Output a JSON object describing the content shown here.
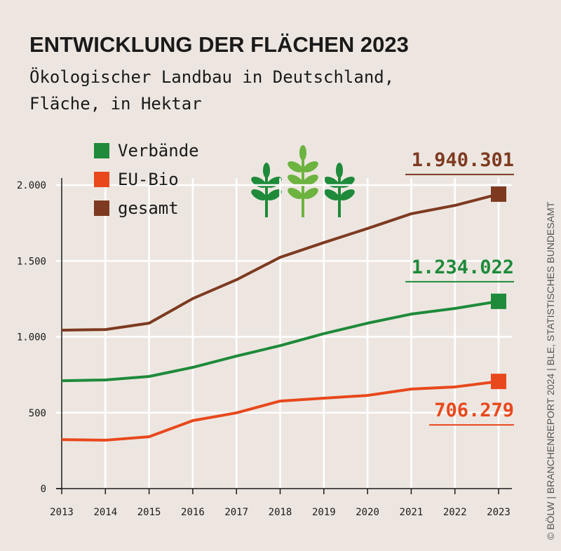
{
  "chart_data": {
    "type": "line",
    "title": "ENTWICKLUNG DER FLÄCHEN 2023",
    "subtitle": [
      "Ökologischer Landbau in Deutschland,",
      "Fläche, in Hektar"
    ],
    "source": "© BÖLW | BRANCHENREPORT 2024 | BLE, STATISTISCHES BUNDESAMT",
    "categories": [
      "2013",
      "2014",
      "2015",
      "2016",
      "2017",
      "2018",
      "2019",
      "2020",
      "2021",
      "2022",
      "2023"
    ],
    "series": [
      {
        "name": "Verbände",
        "color": "#1e8a3a",
        "values": [
          711,
          716,
          739,
          799,
          873,
          942,
          1021,
          1090,
          1150,
          1187,
          1234.022
        ],
        "end_label": "1.234.022"
      },
      {
        "name": "EU-Bio",
        "color": "#e8481c",
        "values": [
          323,
          319,
          342,
          448,
          499,
          577,
          596,
          614,
          656,
          670,
          706.279
        ],
        "end_label": "706.279"
      },
      {
        "name": "gesamt",
        "color": "#7d3a20",
        "values": [
          1044,
          1048,
          1090,
          1252,
          1376,
          1524,
          1621,
          1714,
          1811,
          1866,
          1940.301
        ],
        "end_label": "1.940.301"
      }
    ],
    "ylim": [
      0,
      2000
    ],
    "yticks": [
      0,
      500,
      {
        "value": 1000,
        "label": "1.000"
      },
      {
        "value": 1500,
        "label": "1.500"
      },
      {
        "value": 2000,
        "label": "2.000"
      }
    ],
    "grid": true
  }
}
